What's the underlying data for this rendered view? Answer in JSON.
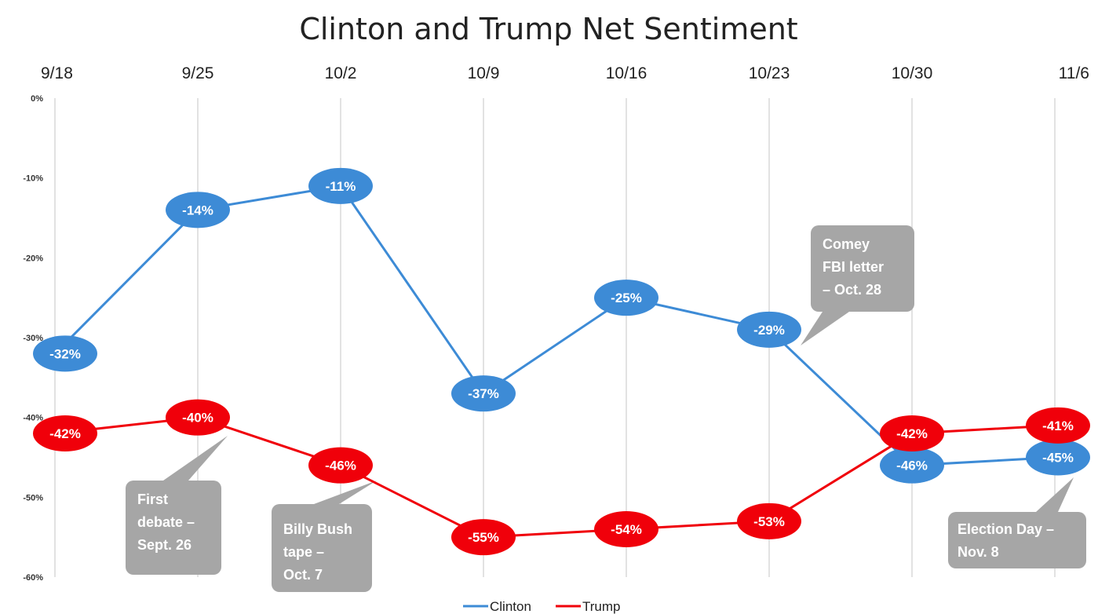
{
  "chart_data": {
    "type": "line",
    "title": "Clinton and Trump Net Sentiment",
    "xlabel": "",
    "ylabel": "",
    "categories": [
      "9/18",
      "9/25",
      "10/2",
      "10/9",
      "10/16",
      "10/23",
      "10/30",
      "11/6"
    ],
    "y_ticks": [
      "0%",
      "-10%",
      "-20%",
      "-30%",
      "-40%",
      "-50%",
      "-60%"
    ],
    "ylim": [
      -60,
      0
    ],
    "x_axis_position": "top",
    "grid": "vertical",
    "legend_position": "bottom-center",
    "series": [
      {
        "name": "Clinton",
        "color": "#3d8bd6",
        "values": [
          -32,
          -14,
          -11,
          -37,
          -25,
          -29,
          -46,
          -45
        ],
        "labels": [
          "-32%",
          "-14%",
          "-11%",
          "-37%",
          "-25%",
          "-29%",
          "-46%",
          "-45%"
        ]
      },
      {
        "name": "Trump",
        "color": "#f0000a",
        "values": [
          -42,
          -40,
          -46,
          -55,
          -54,
          -53,
          -42,
          -41
        ],
        "labels": [
          "-42%",
          "-40%",
          "-46%",
          "-55%",
          "-54%",
          "-53%",
          "-42%",
          "-41%"
        ]
      }
    ],
    "annotations": [
      {
        "lines": [
          "First",
          "debate –",
          "Sept.  26"
        ]
      },
      {
        "lines": [
          "Billy Bush",
          "tape –",
          "Oct. 7"
        ]
      },
      {
        "lines": [
          "Comey",
          "FBI letter",
          "– Oct. 28"
        ]
      },
      {
        "lines": [
          "Election Day –",
          "Nov. 8"
        ]
      }
    ]
  }
}
